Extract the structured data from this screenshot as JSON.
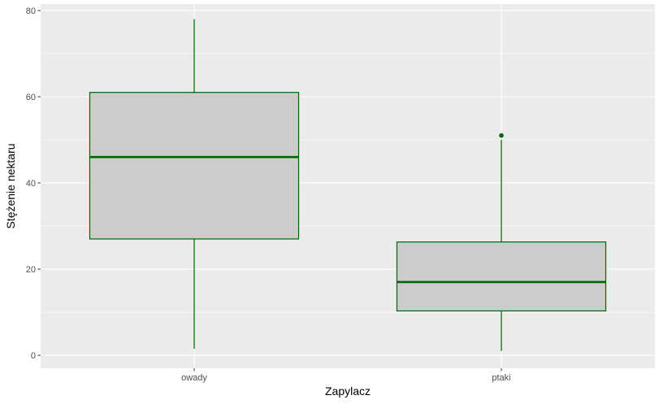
{
  "chart_data": {
    "type": "boxplot",
    "xlabel": "Zapylacz",
    "ylabel": "Stężenie nektaru",
    "categories": [
      "owady",
      "ptaki"
    ],
    "boxes": [
      {
        "category": "owady",
        "whisker_low": 1.5,
        "q1": 27,
        "median": 46,
        "q3": 61,
        "whisker_high": 78,
        "outliers": []
      },
      {
        "category": "ptaki",
        "whisker_low": 1,
        "q1": 10.3,
        "median": 17,
        "q3": 26.3,
        "whisker_high": 50,
        "outliers": [
          51
        ]
      }
    ],
    "ylim": [
      -3,
      81.5
    ],
    "y_ticks": [
      0,
      20,
      40,
      60,
      80
    ],
    "y_tick_labels": [
      "0",
      "20",
      "40",
      "60",
      "80"
    ],
    "grid": true,
    "colors": {
      "panel_background": "#ebebeb",
      "grid": "#ffffff",
      "box_fill": "#cccccc",
      "box_outline": "#006400"
    }
  }
}
